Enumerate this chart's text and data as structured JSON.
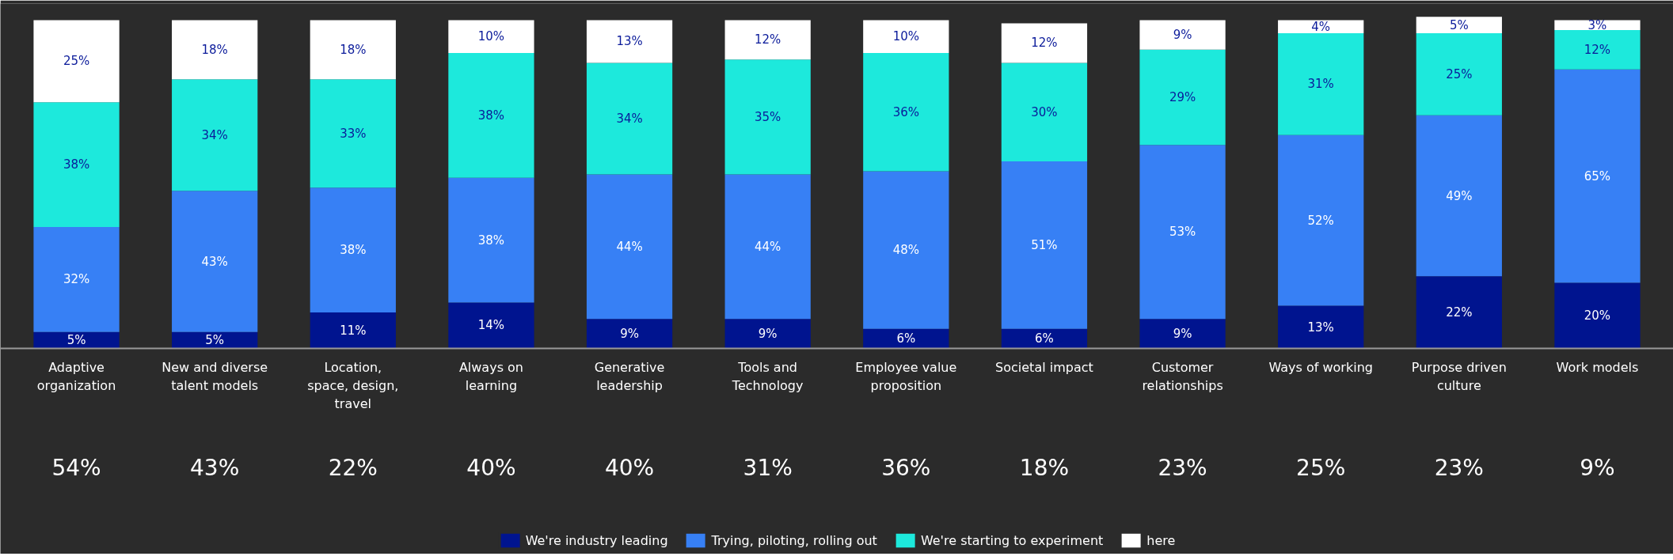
{
  "chart_data": {
    "type": "bar",
    "stacked": true,
    "legend": "bottom",
    "grid": false,
    "categories": [
      "Adaptive organization",
      "New and diverse talent models",
      "Location, space, design, travel",
      "Always on learning",
      "Generative leadership",
      "Tools and Technology",
      "Employee value proposition",
      "Societal impact",
      "Customer relationships",
      "Ways of working",
      "Purpose driven culture",
      "Work models"
    ],
    "series": [
      {
        "name": "We're industry leading",
        "color": "#00148f",
        "values": [
          5,
          5,
          11,
          14,
          9,
          9,
          6,
          6,
          9,
          13,
          22,
          20
        ],
        "value_labels": [
          "5%",
          "5%",
          "11%",
          "14%",
          "9%",
          "9%",
          "6%",
          "6%",
          "9%",
          "13%",
          "22%",
          "20%"
        ]
      },
      {
        "name": "Trying, piloting, rolling out",
        "color": "#3780f5",
        "values": [
          32,
          43,
          38,
          38,
          44,
          44,
          48,
          51,
          53,
          52,
          49,
          65
        ],
        "value_labels": [
          "32%",
          "43%",
          "38%",
          "38%",
          "44%",
          "44%",
          "48%",
          "51%",
          "53%",
          "52%",
          "49%",
          "65%"
        ]
      },
      {
        "name": "We're starting to experiment",
        "color": "#1de9dc",
        "values": [
          38,
          34,
          33,
          38,
          34,
          35,
          36,
          30,
          29,
          31,
          25,
          12
        ],
        "value_labels": [
          "38%",
          "34%",
          "33%",
          "38%",
          "34%",
          "35%",
          "36%",
          "30%",
          "29%",
          "31%",
          "25%",
          "12%"
        ]
      },
      {
        "name": "here",
        "color": "#ffffff",
        "values": [
          25,
          18,
          18,
          10,
          13,
          12,
          10,
          12,
          9,
          4,
          5,
          3
        ],
        "value_labels": [
          "25%",
          "18%",
          "18%",
          "10%",
          "13%",
          "12%",
          "10%",
          "12%",
          "9%",
          "4%",
          "5%",
          "3%"
        ]
      }
    ],
    "annotations": [
      "54%",
      "43%",
      "22%",
      "40%",
      "40%",
      "31%",
      "36%",
      "18%",
      "23%",
      "25%",
      "23%",
      "9%"
    ]
  }
}
